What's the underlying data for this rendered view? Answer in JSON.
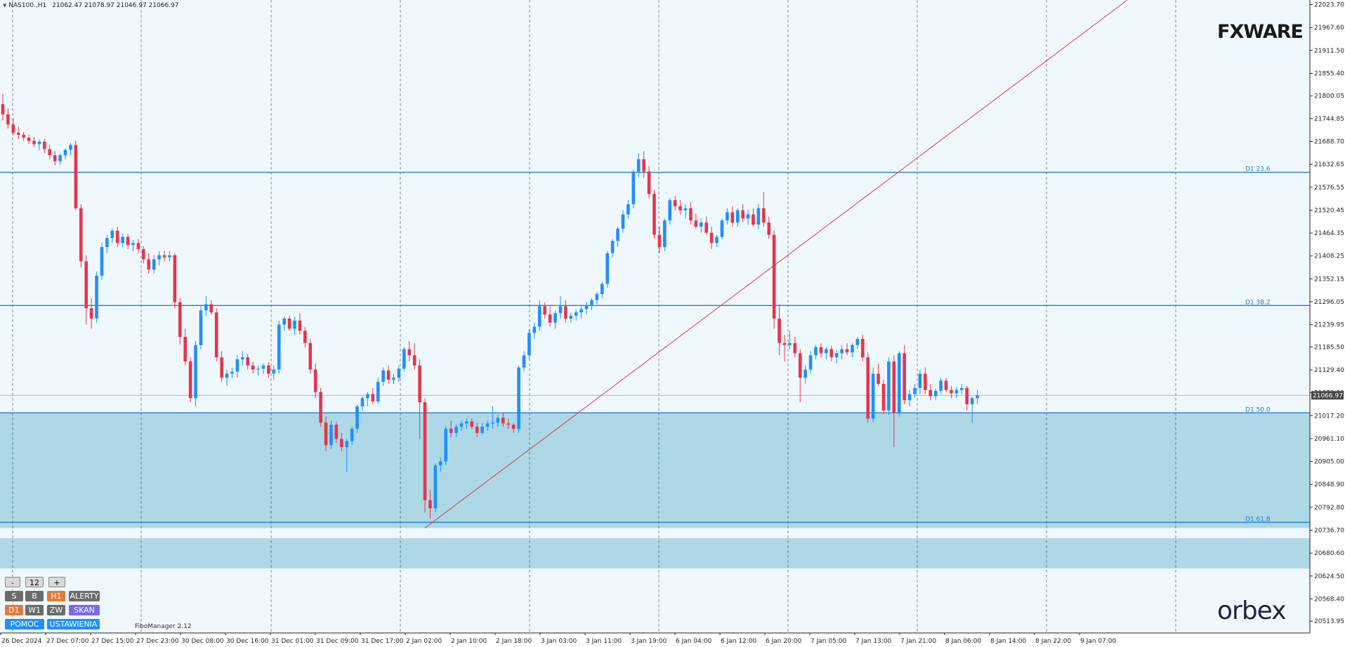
{
  "header": {
    "symbol": "NAS100.,H1",
    "ohlc": "21062.47 21078.97 21046.97 21066.97"
  },
  "logos": {
    "top_right": "FXWARE",
    "bottom_right": "orbex"
  },
  "panel": {
    "minus": "-",
    "value": "12",
    "plus": "+",
    "row1": [
      "S",
      "B",
      "H1",
      "ALERTY"
    ],
    "row2": [
      "D1",
      "W1",
      "ZW",
      "SKAN"
    ],
    "row3": [
      "POMOC",
      "USTAWIENIA"
    ],
    "footer": "FiboManager 2.12"
  },
  "colors": {
    "bull": "#1e90ff",
    "bear": "#e8344a",
    "fib_line": "#1e7fd0",
    "zone": "#add8e6",
    "trendline": "#e8344a",
    "grid": "#444444",
    "background": "#f0f8ff"
  },
  "chart_data": {
    "type": "candlestick",
    "symbol": "NAS100.,H1",
    "current_price": 21066.97,
    "y_axis": {
      "range": [
        20485,
        22035
      ],
      "ticks": [
        22023.7,
        21967.6,
        21911.5,
        21855.4,
        21800.05,
        21744.85,
        21688.7,
        21632.65,
        21576.55,
        21520.45,
        21464.35,
        21408.25,
        21352.15,
        21296.05,
        21239.95,
        21185.5,
        21129.4,
        21073.3,
        21017.2,
        20961.1,
        20905.0,
        20848.9,
        20792.8,
        20736.7,
        20680.6,
        20624.5,
        20568.4,
        20513.95
      ],
      "tick_labels": [
        "22023.70",
        "21967.60",
        "21911.50",
        "21855.40",
        "21800.05",
        "21744.85",
        "21688.70",
        "21632.65",
        "21576.55",
        "21520.45",
        "21464.35",
        "21408.25",
        "21352.15",
        "21296.05",
        "21239.95",
        "21185.50",
        "21129.40",
        "21073.30",
        "21017.20",
        "20961.10",
        "20905.00",
        "20848.90",
        "20792.80",
        "20736.70",
        "20680.60",
        "20624.50",
        "20568.40",
        "20513.95"
      ],
      "current_label": "21066.97"
    },
    "x_axis": {
      "labels": [
        "26 Dec 2024",
        "27 Dec 07:00",
        "27 Dec 15:00",
        "27 Dec 23:00",
        "30 Dec 08:00",
        "30 Dec 16:00",
        "31 Dec 01:00",
        "31 Dec 09:00",
        "31 Dec 17:00",
        "2 Jan 02:00",
        "2 Jan 10:00",
        "2 Jan 18:00",
        "3 Jan 03:00",
        "3 Jan 11:00",
        "3 Jan 19:00",
        "6 Jan 04:00",
        "6 Jan 12:00",
        "6 Jan 20:00",
        "7 Jan 05:00",
        "7 Jan 13:00",
        "7 Jan 21:00",
        "8 Jan 06:00",
        "8 Jan 14:00",
        "8 Jan 22:00",
        "9 Jan 07:00"
      ]
    },
    "fib_levels": [
      {
        "label": "D1 23.6",
        "price": 21613
      },
      {
        "label": "D1 38.2",
        "price": 21287
      },
      {
        "label": "D1 50.0",
        "price": 21024
      },
      {
        "label": "D1 61.8",
        "price": 20756
      }
    ],
    "zones": [
      {
        "from": 20742,
        "to": 21024
      },
      {
        "from": 20643,
        "to": 20717
      }
    ],
    "trendline": {
      "from_price": 20742,
      "to_price": 22035
    },
    "candles": [
      [
        21780,
        21805,
        21740,
        21755
      ],
      [
        21755,
        21770,
        21720,
        21730
      ],
      [
        21730,
        21745,
        21705,
        21710
      ],
      [
        21710,
        21725,
        21695,
        21705
      ],
      [
        21705,
        21712,
        21690,
        21698
      ],
      [
        21698,
        21706,
        21682,
        21690
      ],
      [
        21690,
        21700,
        21675,
        21682
      ],
      [
        21682,
        21694,
        21666,
        21688
      ],
      [
        21688,
        21695,
        21660,
        21670
      ],
      [
        21670,
        21680,
        21645,
        21655
      ],
      [
        21655,
        21665,
        21630,
        21640
      ],
      [
        21640,
        21660,
        21630,
        21655
      ],
      [
        21655,
        21672,
        21645,
        21668
      ],
      [
        21668,
        21685,
        21655,
        21680
      ],
      [
        21680,
        21690,
        21520,
        21525
      ],
      [
        21525,
        21535,
        21380,
        21395
      ],
      [
        21395,
        21410,
        21240,
        21280
      ],
      [
        21280,
        21305,
        21230,
        21255
      ],
      [
        21255,
        21370,
        21245,
        21360
      ],
      [
        21360,
        21440,
        21350,
        21430
      ],
      [
        21430,
        21460,
        21415,
        21452
      ],
      [
        21452,
        21475,
        21440,
        21470
      ],
      [
        21470,
        21480,
        21430,
        21440
      ],
      [
        21440,
        21462,
        21430,
        21455
      ],
      [
        21455,
        21462,
        21425,
        21435
      ],
      [
        21435,
        21448,
        21420,
        21440
      ],
      [
        21440,
        21450,
        21415,
        21425
      ],
      [
        21425,
        21432,
        21390,
        21400
      ],
      [
        21400,
        21415,
        21365,
        21375
      ],
      [
        21375,
        21410,
        21365,
        21400
      ],
      [
        21400,
        21420,
        21385,
        21410
      ],
      [
        21410,
        21420,
        21395,
        21405
      ],
      [
        21405,
        21420,
        21395,
        21410
      ],
      [
        21410,
        21415,
        21280,
        21295
      ],
      [
        21295,
        21305,
        21190,
        21210
      ],
      [
        21210,
        21230,
        21140,
        21150
      ],
      [
        21150,
        21160,
        21050,
        21060
      ],
      [
        21060,
        21200,
        21040,
        21190
      ],
      [
        21190,
        21285,
        21180,
        21275
      ],
      [
        21275,
        21310,
        21260,
        21290
      ],
      [
        21290,
        21300,
        21265,
        21270
      ],
      [
        21270,
        21280,
        21150,
        21160
      ],
      [
        21160,
        21175,
        21100,
        21110
      ],
      [
        21110,
        21130,
        21090,
        21120
      ],
      [
        21120,
        21135,
        21110,
        21125
      ],
      [
        21125,
        21165,
        21110,
        21155
      ],
      [
        21155,
        21175,
        21140,
        21160
      ],
      [
        21160,
        21168,
        21130,
        21140
      ],
      [
        21140,
        21150,
        21120,
        21130
      ],
      [
        21130,
        21140,
        21115,
        21132
      ],
      [
        21132,
        21145,
        21120,
        21140
      ],
      [
        21140,
        21148,
        21110,
        21120
      ],
      [
        21120,
        21140,
        21105,
        21130
      ],
      [
        21130,
        21250,
        21120,
        21240
      ],
      [
        21240,
        21260,
        21225,
        21255
      ],
      [
        21255,
        21262,
        21225,
        21230
      ],
      [
        21230,
        21260,
        21215,
        21250
      ],
      [
        21250,
        21268,
        21215,
        21225
      ],
      [
        21225,
        21235,
        21185,
        21195
      ],
      [
        21195,
        21205,
        21120,
        21130
      ],
      [
        21130,
        21145,
        21060,
        21075
      ],
      [
        21075,
        21085,
        20990,
        21000
      ],
      [
        21000,
        21015,
        20930,
        20945
      ],
      [
        20945,
        21005,
        20935,
        20995
      ],
      [
        20995,
        21002,
        20950,
        20960
      ],
      [
        20960,
        20975,
        20930,
        20940
      ],
      [
        20940,
        20960,
        20880,
        20955
      ],
      [
        20955,
        20990,
        20945,
        20985
      ],
      [
        20985,
        21045,
        20975,
        21040
      ],
      [
        21040,
        21065,
        21030,
        21060
      ],
      [
        21060,
        21075,
        21040,
        21070
      ],
      [
        21070,
        21085,
        21045,
        21052
      ],
      [
        21052,
        21110,
        21045,
        21100
      ],
      [
        21100,
        21135,
        21090,
        21128
      ],
      [
        21128,
        21140,
        21095,
        21105
      ],
      [
        21105,
        21120,
        21095,
        21110
      ],
      [
        21110,
        21140,
        21100,
        21132
      ],
      [
        21132,
        21185,
        21125,
        21180
      ],
      [
        21180,
        21200,
        21150,
        21165
      ],
      [
        21165,
        21195,
        21130,
        21140
      ],
      [
        21140,
        21155,
        20960,
        21050
      ],
      [
        21050,
        21060,
        20780,
        20810
      ],
      [
        20810,
        20835,
        20765,
        20790
      ],
      [
        20790,
        20900,
        20780,
        20895
      ],
      [
        20895,
        20915,
        20880,
        20905
      ],
      [
        20905,
        20990,
        20895,
        20985
      ],
      [
        20985,
        21005,
        20965,
        20975
      ],
      [
        20975,
        20995,
        20965,
        20990
      ],
      [
        20990,
        21005,
        20980,
        20998
      ],
      [
        20998,
        21010,
        20985,
        21003
      ],
      [
        21003,
        21010,
        20985,
        20990
      ],
      [
        20990,
        21000,
        20965,
        20975
      ],
      [
        20975,
        20998,
        20970,
        20990
      ],
      [
        20990,
        21005,
        20980,
        20998
      ],
      [
        20998,
        21040,
        20985,
        21000
      ],
      [
        21000,
        21020,
        20990,
        21012
      ],
      [
        21012,
        21025,
        20990,
        20998
      ],
      [
        20998,
        21010,
        20985,
        20995
      ],
      [
        20995,
        21000,
        20975,
        20985
      ],
      [
        20985,
        21140,
        20975,
        21135
      ],
      [
        21135,
        21175,
        21125,
        21165
      ],
      [
        21165,
        21230,
        21155,
        21220
      ],
      [
        21220,
        21245,
        21205,
        21235
      ],
      [
        21235,
        21300,
        21225,
        21285
      ],
      [
        21285,
        21295,
        21255,
        21265
      ],
      [
        21265,
        21285,
        21235,
        21245
      ],
      [
        21245,
        21275,
        21230,
        21268
      ],
      [
        21268,
        21310,
        21255,
        21285
      ],
      [
        21285,
        21300,
        21245,
        21255
      ],
      [
        21255,
        21270,
        21245,
        21262
      ],
      [
        21262,
        21278,
        21250,
        21270
      ],
      [
        21270,
        21285,
        21255,
        21278
      ],
      [
        21278,
        21295,
        21265,
        21288
      ],
      [
        21288,
        21305,
        21275,
        21300
      ],
      [
        21300,
        21320,
        21290,
        21315
      ],
      [
        21315,
        21345,
        21305,
        21340
      ],
      [
        21340,
        21420,
        21330,
        21415
      ],
      [
        21415,
        21450,
        21405,
        21445
      ],
      [
        21445,
        21480,
        21430,
        21475
      ],
      [
        21475,
        21520,
        21465,
        21510
      ],
      [
        21510,
        21545,
        21500,
        21535
      ],
      [
        21535,
        21620,
        21525,
        21615
      ],
      [
        21615,
        21660,
        21600,
        21645
      ],
      [
        21645,
        21665,
        21600,
        21615
      ],
      [
        21615,
        21628,
        21550,
        21560
      ],
      [
        21560,
        21570,
        21450,
        21460
      ],
      [
        21460,
        21480,
        21415,
        21430
      ],
      [
        21430,
        21500,
        21420,
        21495
      ],
      [
        21495,
        21550,
        21485,
        21545
      ],
      [
        21545,
        21555,
        21520,
        21530
      ],
      [
        21530,
        21545,
        21510,
        21520
      ],
      [
        21520,
        21535,
        21500,
        21525
      ],
      [
        21525,
        21540,
        21485,
        21495
      ],
      [
        21495,
        21512,
        21475,
        21480
      ],
      [
        21480,
        21500,
        21465,
        21490
      ],
      [
        21490,
        21505,
        21460,
        21465
      ],
      [
        21465,
        21480,
        21425,
        21440
      ],
      [
        21440,
        21460,
        21430,
        21455
      ],
      [
        21455,
        21500,
        21450,
        21495
      ],
      [
        21495,
        21525,
        21485,
        21515
      ],
      [
        21515,
        21530,
        21480,
        21490
      ],
      [
        21490,
        21525,
        21480,
        21520
      ],
      [
        21520,
        21535,
        21490,
        21500
      ],
      [
        21500,
        21522,
        21485,
        21510
      ],
      [
        21510,
        21525,
        21480,
        21485
      ],
      [
        21485,
        21535,
        21475,
        21525
      ],
      [
        21525,
        21565,
        21480,
        21490
      ],
      [
        21490,
        21505,
        21450,
        21460
      ],
      [
        21460,
        21470,
        21230,
        21255
      ],
      [
        21255,
        21290,
        21165,
        21195
      ],
      [
        21195,
        21215,
        21150,
        21190
      ],
      [
        21190,
        21225,
        21180,
        21195
      ],
      [
        21195,
        21210,
        21160,
        21170
      ],
      [
        21170,
        21180,
        21050,
        21110
      ],
      [
        21110,
        21140,
        21095,
        21130
      ],
      [
        21130,
        21175,
        21120,
        21165
      ],
      [
        21165,
        21190,
        21155,
        21185
      ],
      [
        21185,
        21195,
        21160,
        21170
      ],
      [
        21170,
        21185,
        21155,
        21180
      ],
      [
        21180,
        21188,
        21150,
        21160
      ],
      [
        21160,
        21178,
        21145,
        21170
      ],
      [
        21170,
        21190,
        21155,
        21180
      ],
      [
        21180,
        21195,
        21165,
        21172
      ],
      [
        21172,
        21195,
        21160,
        21190
      ],
      [
        21190,
        21210,
        21180,
        21205
      ],
      [
        21205,
        21215,
        21150,
        21160
      ],
      [
        21160,
        21172,
        21000,
        21010
      ],
      [
        21010,
        21135,
        21000,
        21120
      ],
      [
        21120,
        21145,
        21090,
        21095
      ],
      [
        21095,
        21105,
        21020,
        21030
      ],
      [
        21030,
        21160,
        21020,
        21150
      ],
      [
        21150,
        21165,
        20940,
        21025
      ],
      [
        21025,
        21175,
        21015,
        21170
      ],
      [
        21170,
        21190,
        21045,
        21055
      ],
      [
        21055,
        21080,
        21040,
        21070
      ],
      [
        21070,
        21095,
        21060,
        21085
      ],
      [
        21085,
        21130,
        21070,
        21120
      ],
      [
        21120,
        21135,
        21070,
        21080
      ],
      [
        21080,
        21095,
        21055,
        21065
      ],
      [
        21065,
        21085,
        21055,
        21078
      ],
      [
        21078,
        21110,
        21070,
        21103
      ],
      [
        21103,
        21110,
        21075,
        21080
      ],
      [
        21080,
        21090,
        21060,
        21072
      ],
      [
        21072,
        21088,
        21060,
        21080
      ],
      [
        21080,
        21095,
        21070,
        21085
      ],
      [
        21085,
        21090,
        21030,
        21045
      ],
      [
        21045,
        21065,
        21000,
        21060
      ],
      [
        21060,
        21080,
        21045,
        21066.97
      ]
    ]
  }
}
